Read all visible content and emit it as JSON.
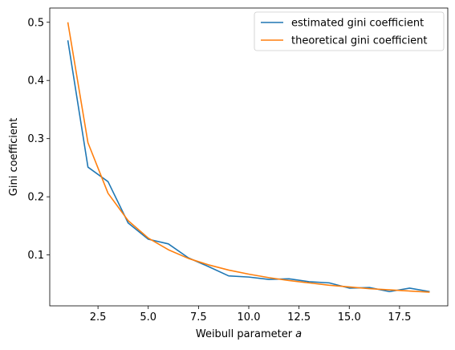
{
  "chart_data": {
    "type": "line",
    "title": "",
    "xlabel": "Weibull parameter ",
    "xlabel_math": "a",
    "ylabel": "Gini coefficient",
    "xlim": [
      0.1,
      19.9
    ],
    "ylim": [
      0.0125,
      0.5245
    ],
    "xticks": [
      2.5,
      5.0,
      7.5,
      10.0,
      12.5,
      15.0,
      17.5
    ],
    "xtick_labels": [
      "2.5",
      "5.0",
      "7.5",
      "10.0",
      "12.5",
      "15.0",
      "17.5"
    ],
    "yticks": [
      0.1,
      0.2,
      0.3,
      0.4,
      0.5
    ],
    "ytick_labels": [
      "0.1",
      "0.2",
      "0.3",
      "0.4",
      "0.5"
    ],
    "grid": false,
    "legend_position": "top-right",
    "x": [
      1,
      2,
      3,
      4,
      5,
      6,
      7,
      8,
      9,
      10,
      11,
      12,
      13,
      14,
      15,
      16,
      17,
      18,
      19
    ],
    "series": [
      {
        "name": "estimated gini coefficient",
        "color": "#1f77b4",
        "values": [
          0.469,
          0.251,
          0.226,
          0.155,
          0.127,
          0.119,
          0.095,
          0.08,
          0.064,
          0.062,
          0.058,
          0.059,
          0.054,
          0.052,
          0.043,
          0.044,
          0.037,
          0.043,
          0.037
        ]
      },
      {
        "name": "theoretical gini coefficient",
        "color": "#ff7f0e",
        "values": [
          0.5,
          0.293,
          0.206,
          0.159,
          0.129,
          0.109,
          0.094,
          0.083,
          0.074,
          0.067,
          0.061,
          0.056,
          0.052,
          0.048,
          0.045,
          0.042,
          0.04,
          0.038,
          0.036
        ]
      }
    ]
  }
}
